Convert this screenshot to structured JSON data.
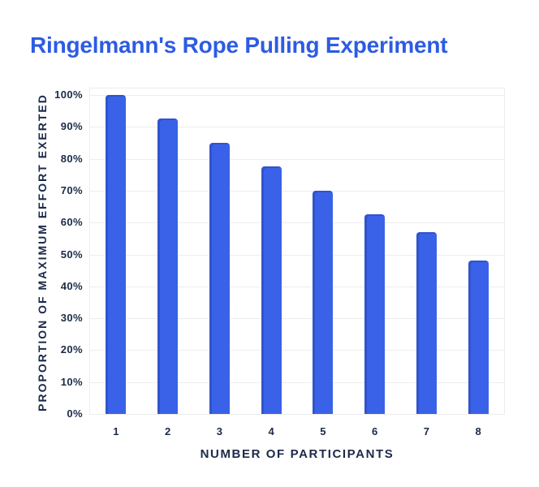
{
  "header": {
    "title": "Ringelmann's Rope Pulling Experiment"
  },
  "chart_data": {
    "type": "bar",
    "title": "Ringelmann's Rope Pulling Experiment",
    "categories": [
      "1",
      "2",
      "3",
      "4",
      "5",
      "6",
      "7",
      "8"
    ],
    "values": [
      100,
      92.5,
      85,
      77.5,
      70,
      62.5,
      57,
      48
    ],
    "xlabel": "NUMBER OF PARTICIPANTS",
    "ylabel": "PROPORTION OF MAXIMUM EFFORT EXERTED",
    "ylim": [
      0,
      100
    ],
    "ytick_step": 10,
    "ytick_suffix": "%",
    "grid": true,
    "legend": false,
    "colors": {
      "title": "#2d5ce2",
      "bar": "#3a62e8",
      "grid": "#ededed",
      "text": "#1b2a4a",
      "background": "#ffffff"
    }
  }
}
